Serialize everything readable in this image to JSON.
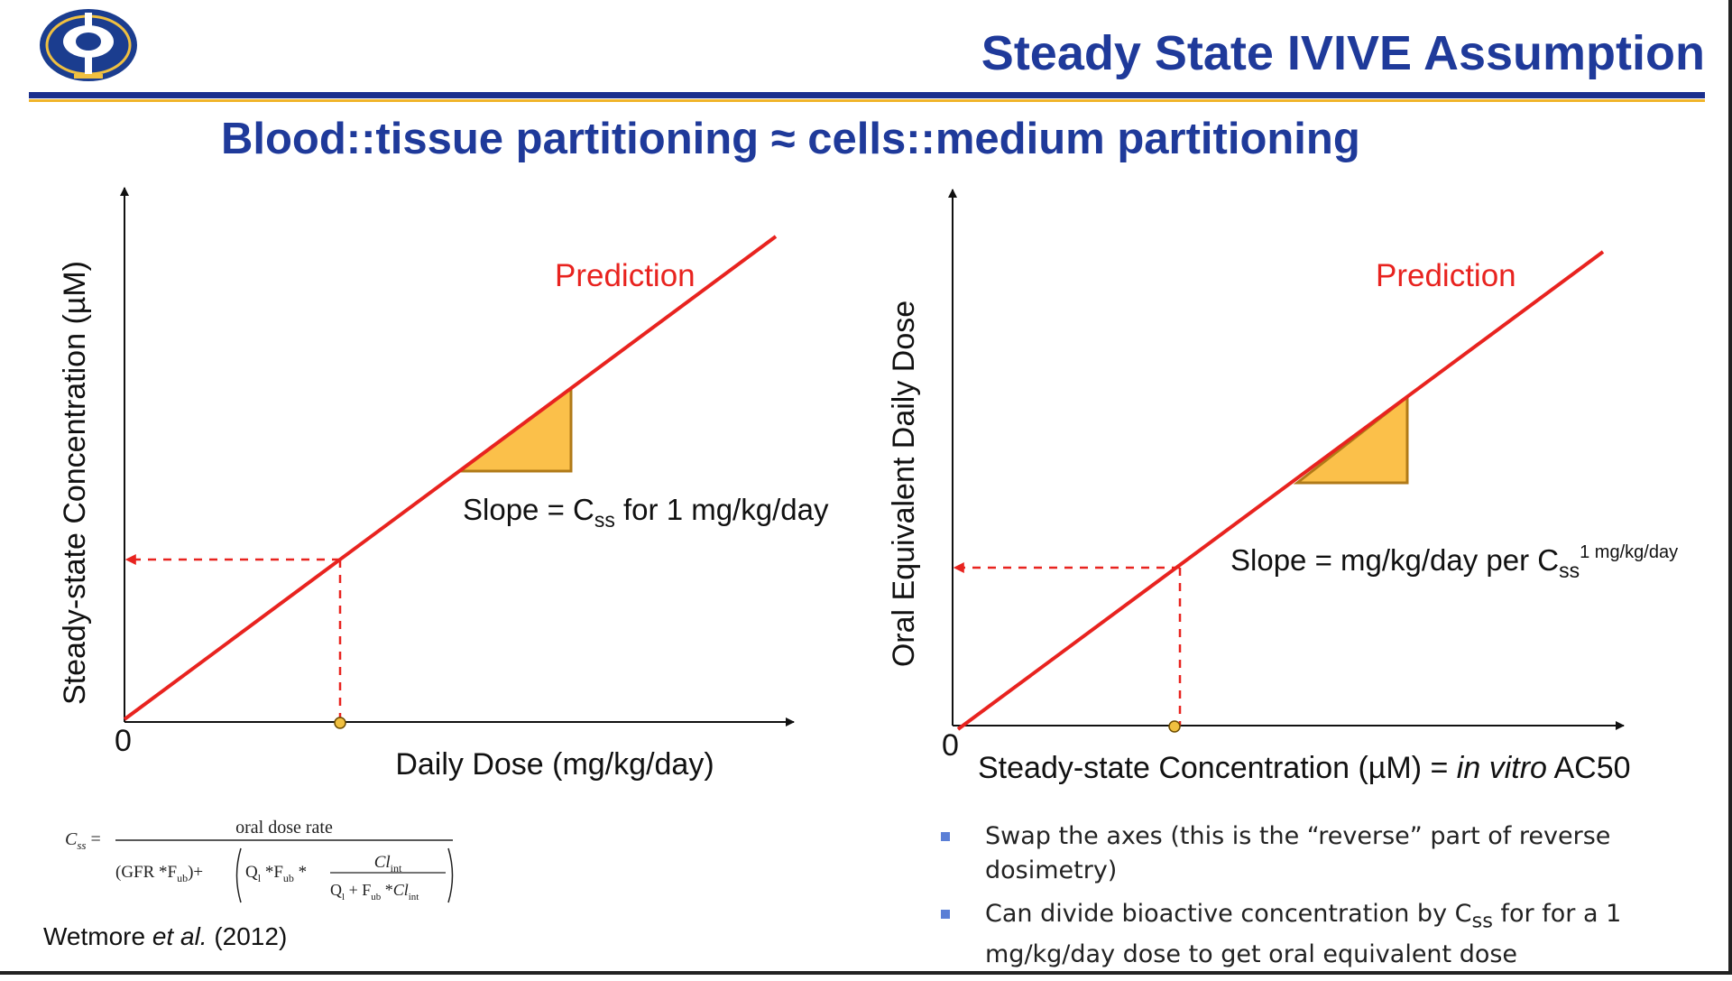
{
  "title": "Steady State IVIVE Assumption",
  "subtitle": "Blood::tissue partitioning ≈ cells::medium partitioning",
  "logo_icon": "organization-seal-icon",
  "colors": {
    "title": "#1f3a9a",
    "rule_blue": "#1b2f8e",
    "rule_gold": "#f0b429",
    "prediction_line": "#e8231f",
    "slope_triangle": "#fbc04a",
    "bullet": "#5b7fd6"
  },
  "left_plot": {
    "ylabel": "Steady-state Concentration (µM)",
    "xlabel": "Daily Dose (mg/kg/day)",
    "origin_label": "0",
    "line_label": "Prediction",
    "slope_text": "Slope = C",
    "slope_sub": "ss",
    "slope_tail": " for 1 mg/kg/day"
  },
  "right_plot": {
    "ylabel": "Oral Equivalent Daily Dose",
    "xlabel_pre": "Steady-state Concentration (µM) = ",
    "xlabel_italic": "in vitro",
    "xlabel_post": " AC50",
    "origin_label": "0",
    "line_label": "Prediction",
    "slope_text": "Slope = mg/kg/day per C",
    "slope_sub": "ss",
    "slope_sup": "1 mg/kg/day"
  },
  "formula": {
    "lhs": "C",
    "lhs_sub": "ss",
    "numerator": "oral dose rate",
    "term1": "(GFR *F",
    "term1_sub": "ub",
    "term1_close": ")+",
    "q": "Q",
    "q_sub": "l",
    "star_f": " *F",
    "f_sub": "ub",
    "star": " *",
    "cl": "Cl",
    "cl_sub": "int",
    "inner_den_q": "Q",
    "inner_den_plus": " + F",
    "inner_den_star": " *",
    "inner_den_cl": "Cl"
  },
  "citation": {
    "author": "Wetmore ",
    "etal": "et al.",
    "year": " (2012)"
  },
  "bullets": [
    {
      "text": "Swap the axes (this is the “reverse” part of reverse dosimetry)"
    },
    {
      "pre": "Can divide bioactive concentration by C",
      "sub": "ss",
      "post": " for for a 1 mg/kg/day dose to get oral equivalent dose"
    }
  ]
}
